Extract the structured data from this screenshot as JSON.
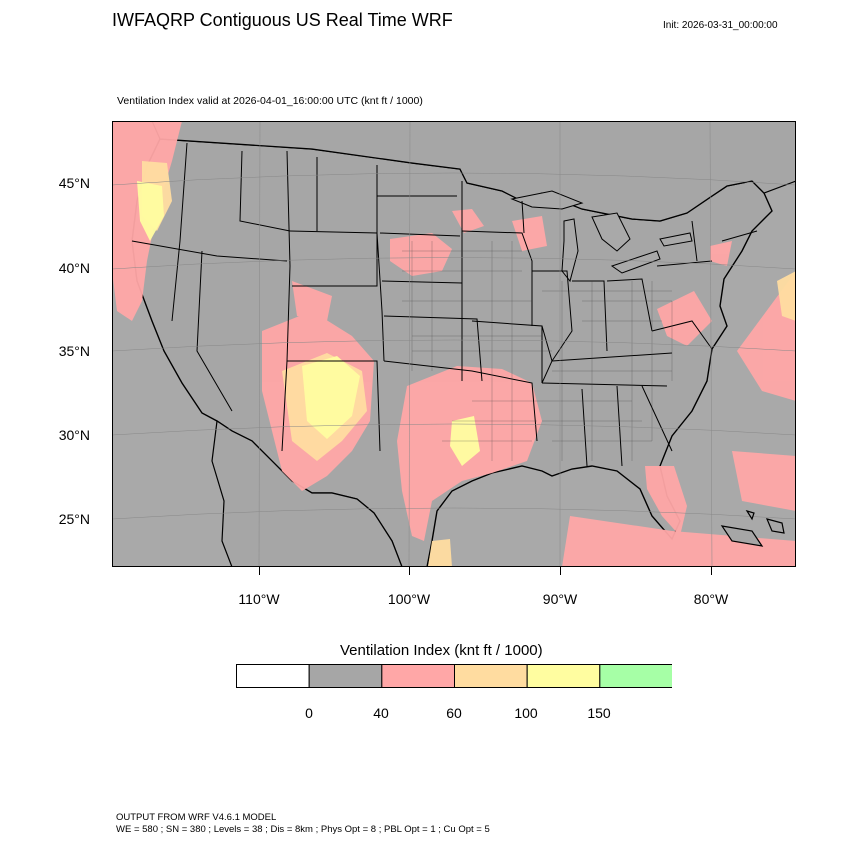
{
  "header": {
    "title": "IWFAQRP Contiguous US Real Time WRF",
    "init": "Init: 2026-03-31_00:00:00"
  },
  "map": {
    "subtitle": "Ventilation Index valid at 2026-04-01_16:00:00 UTC   (knt ft / 1000)",
    "lat_labels": [
      "45°N",
      "40°N",
      "35°N",
      "30°N",
      "25°N"
    ],
    "lon_labels": [
      "110°W",
      "100°W",
      "90°W",
      "80°W"
    ],
    "colors": {
      "ocean": "#a9a9a9",
      "land": "#a6a6a6",
      "low": "#ffa7a7",
      "mid": "#ffdca0",
      "high": "#fffda0"
    }
  },
  "colorbar": {
    "title": "Ventilation Index  (knt ft / 1000)",
    "bins": [
      {
        "color": "#ffffff"
      },
      {
        "color": "#a6a6a6"
      },
      {
        "color": "#ffa7a7"
      },
      {
        "color": "#ffdca0"
      },
      {
        "color": "#fffda0"
      },
      {
        "color": "#a6ffa6"
      }
    ],
    "ticks": [
      "0",
      "40",
      "60",
      "100",
      "150"
    ]
  },
  "footer": {
    "line1": "OUTPUT FROM WRF V4.6.1 MODEL",
    "line2": "WE = 580 ; SN = 380 ; Levels = 38 ; Dis = 8km ; Phys Opt = 8 ; PBL Opt = 1 ; Cu Opt = 5"
  }
}
